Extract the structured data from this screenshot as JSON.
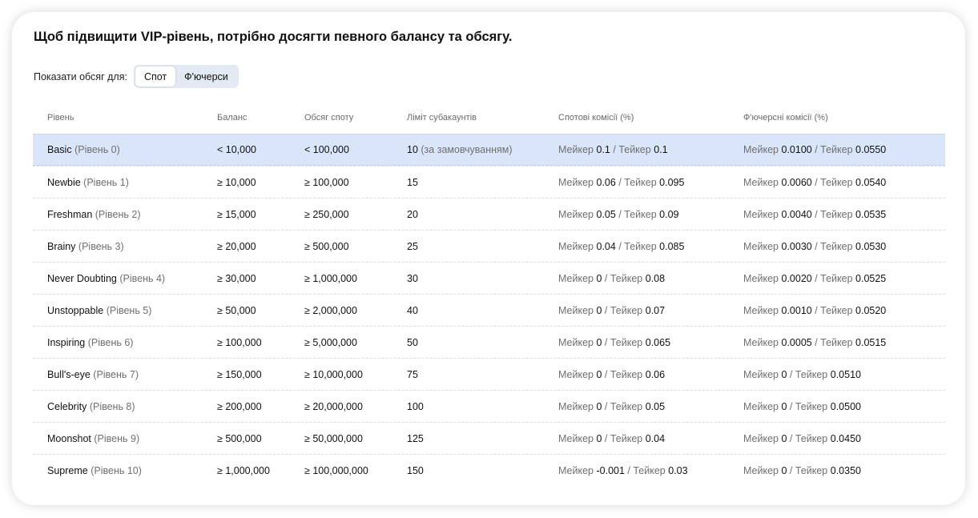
{
  "heading": "Щоб підвищити VIP-рівень, потрібно досягти певного балансу та обсягу.",
  "filter": {
    "label": "Показати обсяг для:",
    "options": [
      "Спот",
      "Ф'ючерси"
    ],
    "selected": "Спот"
  },
  "table": {
    "headers": [
      "Рівень",
      "Баланс",
      "Обсяг споту",
      "Ліміт субакаунтів",
      "Спотові комісії (%)",
      "Ф'ючерсні комісії (%)"
    ],
    "maker_label": "Мейкер",
    "taker_label": "Тейкер",
    "highlight_color": "#d9e5f9",
    "rows": [
      {
        "name": "Basic",
        "level": "(Рівень 0)",
        "balance": "< 10,000",
        "volume": "< 100,000",
        "subaccounts": "10",
        "subaccounts_note": "(за замовчуванням)",
        "spot_maker": "0.1",
        "spot_taker": "0.1",
        "fut_maker": "0.0100",
        "fut_taker": "0.0550"
      },
      {
        "name": "Newbie",
        "level": "(Рівень 1)",
        "balance": "≥ 10,000",
        "volume": "≥ 100,000",
        "subaccounts": "15",
        "subaccounts_note": "",
        "spot_maker": "0.06",
        "spot_taker": "0.095",
        "fut_maker": "0.0060",
        "fut_taker": "0.0540"
      },
      {
        "name": "Freshman",
        "level": "(Рівень 2)",
        "balance": "≥ 15,000",
        "volume": "≥ 250,000",
        "subaccounts": "20",
        "subaccounts_note": "",
        "spot_maker": "0.05",
        "spot_taker": "0.09",
        "fut_maker": "0.0040",
        "fut_taker": "0.0535"
      },
      {
        "name": "Brainy",
        "level": "(Рівень 3)",
        "balance": "≥ 20,000",
        "volume": "≥ 500,000",
        "subaccounts": "25",
        "subaccounts_note": "",
        "spot_maker": "0.04",
        "spot_taker": "0.085",
        "fut_maker": "0.0030",
        "fut_taker": "0.0530"
      },
      {
        "name": "Never Doubting",
        "level": "(Рівень 4)",
        "balance": "≥ 30,000",
        "volume": "≥ 1,000,000",
        "subaccounts": "30",
        "subaccounts_note": "",
        "spot_maker": "0",
        "spot_taker": "0.08",
        "fut_maker": "0.0020",
        "fut_taker": "0.0525"
      },
      {
        "name": "Unstoppable",
        "level": "(Рівень 5)",
        "balance": "≥ 50,000",
        "volume": "≥ 2,000,000",
        "subaccounts": "40",
        "subaccounts_note": "",
        "spot_maker": "0",
        "spot_taker": "0.07",
        "fut_maker": "0.0010",
        "fut_taker": "0.0520"
      },
      {
        "name": "Inspiring",
        "level": "(Рівень 6)",
        "balance": "≥ 100,000",
        "volume": "≥ 5,000,000",
        "subaccounts": "50",
        "subaccounts_note": "",
        "spot_maker": "0",
        "spot_taker": "0.065",
        "fut_maker": "0.0005",
        "fut_taker": "0.0515"
      },
      {
        "name": "Bull's-eye",
        "level": "(Рівень 7)",
        "balance": "≥ 150,000",
        "volume": "≥ 10,000,000",
        "subaccounts": "75",
        "subaccounts_note": "",
        "spot_maker": "0",
        "spot_taker": "0.06",
        "fut_maker": "0",
        "fut_taker": "0.0510"
      },
      {
        "name": "Celebrity",
        "level": "(Рівень 8)",
        "balance": "≥ 200,000",
        "volume": "≥ 20,000,000",
        "subaccounts": "100",
        "subaccounts_note": "",
        "spot_maker": "0",
        "spot_taker": "0.05",
        "fut_maker": "0",
        "fut_taker": "0.0500"
      },
      {
        "name": "Moonshot",
        "level": "(Рівень 9)",
        "balance": "≥ 500,000",
        "volume": "≥ 50,000,000",
        "subaccounts": "125",
        "subaccounts_note": "",
        "spot_maker": "0",
        "spot_taker": "0.04",
        "fut_maker": "0",
        "fut_taker": "0.0450"
      },
      {
        "name": "Supreme",
        "level": "(Рівень 10)",
        "balance": "≥ 1,000,000",
        "volume": "≥ 100,000,000",
        "subaccounts": "150",
        "subaccounts_note": "",
        "spot_maker": "-0.001",
        "spot_taker": "0.03",
        "fut_maker": "0",
        "fut_taker": "0.0350"
      }
    ]
  }
}
